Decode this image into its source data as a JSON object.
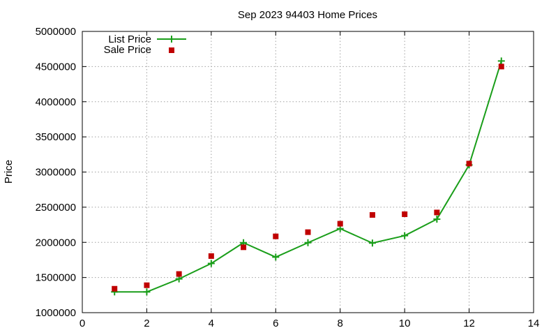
{
  "chart_data": {
    "type": "line",
    "title": "Sep 2023 94403 Home Prices",
    "xlabel": "",
    "ylabel": "Price",
    "xlim": [
      0,
      14
    ],
    "ylim": [
      1000000,
      5000000
    ],
    "x_ticks": [
      0,
      2,
      4,
      6,
      8,
      10,
      12,
      14
    ],
    "x_tick_labels": [
      "0",
      "2",
      "4",
      "6",
      "8",
      "10",
      "12",
      "14"
    ],
    "y_ticks": [
      1000000,
      1500000,
      2000000,
      2500000,
      3000000,
      3500000,
      4000000,
      4500000,
      5000000
    ],
    "y_tick_labels": [
      "1000000",
      "1500000",
      "2000000",
      "2500000",
      "3000000",
      "3500000",
      "4000000",
      "4500000",
      "5000000"
    ],
    "grid": true,
    "legend_position": "top-left",
    "series": [
      {
        "name": "List Price",
        "style": "line-with-plus-markers",
        "color": "#1a9e1a",
        "x": [
          1,
          2,
          3,
          4,
          5,
          6,
          7,
          8,
          9,
          10,
          11,
          12,
          13
        ],
        "y": [
          1295000,
          1295000,
          1480000,
          1700000,
          1995000,
          1790000,
          1995000,
          2195000,
          1990000,
          2095000,
          2330000,
          3100000,
          4580000
        ]
      },
      {
        "name": "Sale Price",
        "style": "square-markers",
        "color": "#c00000",
        "x": [
          1,
          2,
          3,
          4,
          5,
          6,
          7,
          8,
          9,
          10,
          11,
          12,
          13
        ],
        "y": [
          1340000,
          1390000,
          1550000,
          1805000,
          1930000,
          2085000,
          2145000,
          2265000,
          2390000,
          2400000,
          2425000,
          3120000,
          4500000
        ]
      }
    ]
  }
}
